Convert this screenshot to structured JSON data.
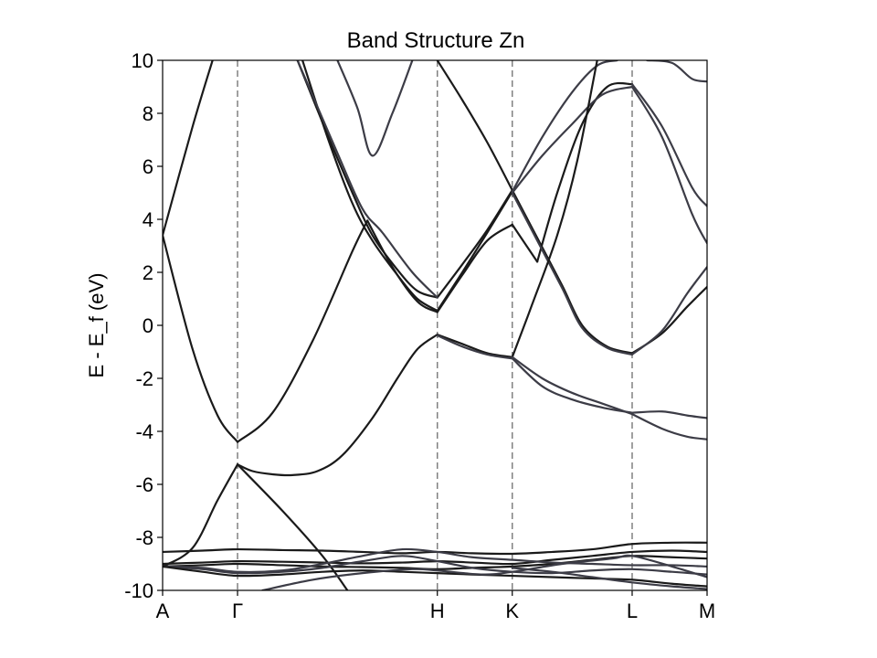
{
  "chart_data": {
    "type": "line",
    "title": "Band Structure Zn",
    "ylabel": "E - E_f (eV)",
    "xlabel": "",
    "ylim": [
      -10,
      10
    ],
    "xlim": [
      0,
      5.45
    ],
    "yticks": [
      10,
      8,
      6,
      4,
      2,
      0,
      -2,
      -4,
      -6,
      -8,
      -10
    ],
    "ytick_labels": [
      "10",
      "8",
      "6",
      "4",
      "2",
      "0",
      "-2",
      "-4",
      "-6",
      "-8",
      "-10"
    ],
    "grid": false,
    "kpoints": [
      {
        "label": "A",
        "x": 0.0
      },
      {
        "label": "Γ",
        "x": 0.75
      },
      {
        "label": "H",
        "x": 2.75
      },
      {
        "label": "K",
        "x": 3.5
      },
      {
        "label": "L",
        "x": 4.7
      },
      {
        "label": "M",
        "x": 5.45
      }
    ],
    "dashed_lines_at": [
      0.75,
      2.75,
      3.5,
      4.7
    ],
    "colors": {
      "band": "#1a1a1a",
      "band_alt": "#3c3c46",
      "dashed": "#808080",
      "frame": "#000000"
    },
    "series": [
      {
        "color": "#1a1a1a",
        "x": [
          0,
          0.3,
          0.55,
          0.75
        ],
        "y": [
          3.4,
          -0.9,
          -3.4,
          -4.4
        ]
      },
      {
        "color": "#1a1a1a",
        "x": [
          0.75,
          1.1,
          1.5,
          1.9,
          2.05
        ],
        "y": [
          -4.4,
          -3.3,
          -0.6,
          2.8,
          3.95
        ]
      },
      {
        "color": "#1a1a1a",
        "x": [
          2.05,
          2.3,
          2.55,
          2.75
        ],
        "y": [
          3.95,
          2.2,
          0.9,
          0.5
        ]
      },
      {
        "color": "#1a1a1a",
        "x": [
          2.75,
          3.0,
          3.25,
          3.5
        ],
        "y": [
          0.5,
          1.9,
          3.2,
          3.8
        ]
      },
      {
        "color": "#1a1a1a",
        "x": [
          3.5,
          3.75
        ],
        "y": [
          3.8,
          2.4
        ]
      },
      {
        "color": "#1a1a1a",
        "x": [
          3.75,
          3.95,
          4.2,
          4.45,
          4.7
        ],
        "y": [
          2.4,
          5.0,
          7.6,
          9.0,
          9.1
        ]
      },
      {
        "color": "#3c3c46",
        "x": [
          4.7,
          5.0,
          5.3,
          5.45
        ],
        "y": [
          9.1,
          7.5,
          5.2,
          4.5
        ]
      },
      {
        "color": "#1a1a1a",
        "x": [
          0,
          0.3,
          0.5
        ],
        "y": [
          3.4,
          7.5,
          10.0
        ]
      },
      {
        "color": "#1a1a1a",
        "x": [
          1.35,
          1.65,
          1.9,
          2.1,
          2.35,
          2.55,
          2.75
        ],
        "y": [
          10.0,
          7.2,
          5.0,
          3.4,
          2.1,
          1.3,
          1.05
        ]
      },
      {
        "color": "#1a1a1a",
        "x": [
          2.75,
          3.0,
          3.25,
          3.5
        ],
        "y": [
          1.05,
          2.3,
          3.6,
          5.1
        ]
      },
      {
        "color": "#1a1a1a",
        "x": [
          1.4,
          1.65,
          1.9,
          2.1,
          2.35,
          2.55,
          2.75
        ],
        "y": [
          10.0,
          7.1,
          4.6,
          3.2,
          1.9,
          1.0,
          0.55
        ]
      },
      {
        "color": "#1a1a1a",
        "x": [
          2.75,
          3.0,
          3.25,
          3.5
        ],
        "y": [
          0.55,
          2.0,
          3.5,
          5.05
        ]
      },
      {
        "color": "#1a1a1a",
        "x": [
          2.75,
          3.0,
          3.25,
          3.5
        ],
        "y": [
          10.0,
          8.5,
          6.9,
          5.1
        ]
      },
      {
        "color": "#1a1a1a",
        "x": [
          3.5,
          3.75,
          4.0,
          4.2,
          4.45,
          4.7
        ],
        "y": [
          5.1,
          3.3,
          1.5,
          0.0,
          -0.8,
          -1.05
        ]
      },
      {
        "color": "#1a1a1a",
        "x": [
          4.7,
          5.0,
          5.25,
          5.45
        ],
        "y": [
          -1.05,
          -0.3,
          0.7,
          1.45
        ]
      },
      {
        "color": "#3c3c46",
        "x": [
          3.5,
          3.75,
          4.0,
          4.2,
          4.45,
          4.7
        ],
        "y": [
          5.0,
          3.2,
          1.4,
          -0.1,
          -0.85,
          -1.1
        ]
      },
      {
        "color": "#3c3c46",
        "x": [
          4.7,
          5.0,
          5.25,
          5.45
        ],
        "y": [
          -1.1,
          -0.2,
          1.2,
          2.2
        ]
      },
      {
        "color": "#3c3c46",
        "x": [
          3.5,
          3.8,
          4.1,
          4.4,
          4.7
        ],
        "y": [
          5.0,
          6.4,
          7.6,
          8.7,
          9.0
        ]
      },
      {
        "color": "#3c3c46",
        "x": [
          4.7,
          5.0,
          5.3,
          5.45
        ],
        "y": [
          9.0,
          7.1,
          4.2,
          3.1
        ]
      },
      {
        "color": "#3c3c46",
        "x": [
          3.5,
          3.8,
          4.1,
          4.35,
          4.55
        ],
        "y": [
          5.05,
          7.1,
          8.8,
          9.8,
          10.0
        ]
      },
      {
        "color": "#1a1a1a",
        "x": [
          3.5,
          3.7,
          3.95,
          4.15,
          4.35
        ],
        "y": [
          -1.2,
          0.8,
          3.4,
          6.2,
          10.0
        ]
      },
      {
        "color": "#3c3c46",
        "x": [
          1.75,
          1.95,
          2.1,
          2.3,
          2.5
        ],
        "y": [
          10.0,
          8.2,
          6.4,
          8.0,
          10.0
        ]
      },
      {
        "color": "#3c3c46",
        "x": [
          1.35,
          1.75,
          2.0,
          2.2,
          2.5,
          2.75
        ],
        "y": [
          10.0,
          6.5,
          4.4,
          3.5,
          2.0,
          1.05
        ]
      },
      {
        "color": "#1a1a1a",
        "x": [
          0.75,
          0.9,
          1.1,
          1.3,
          1.55,
          1.8,
          2.1,
          2.35,
          2.55,
          2.75
        ],
        "y": [
          -5.25,
          -5.5,
          -5.62,
          -5.65,
          -5.5,
          -4.9,
          -3.5,
          -2.0,
          -0.9,
          -0.35
        ]
      },
      {
        "color": "#1a1a1a",
        "x": [
          2.75,
          3.0,
          3.25,
          3.5
        ],
        "y": [
          -0.35,
          -0.7,
          -1.05,
          -1.2
        ]
      },
      {
        "color": "#3c3c46",
        "x": [
          2.75,
          3.0,
          3.25,
          3.5
        ],
        "y": [
          -0.38,
          -0.8,
          -1.1,
          -1.25
        ]
      },
      {
        "color": "#3c3c46",
        "x": [
          3.5,
          3.8,
          4.1,
          4.4,
          4.7
        ],
        "y": [
          -1.2,
          -2.0,
          -2.55,
          -2.95,
          -3.35
        ]
      },
      {
        "color": "#3c3c46",
        "x": [
          4.7,
          5.0,
          5.25,
          5.45
        ],
        "y": [
          -3.35,
          -3.9,
          -4.2,
          -4.3
        ]
      },
      {
        "color": "#3c3c46",
        "x": [
          3.5,
          3.8,
          4.1,
          4.4,
          4.7
        ],
        "y": [
          -1.25,
          -2.3,
          -2.8,
          -3.1,
          -3.3
        ]
      },
      {
        "color": "#3c3c46",
        "x": [
          4.7,
          5.0,
          5.25,
          5.45
        ],
        "y": [
          -3.3,
          -3.25,
          -3.4,
          -3.5
        ]
      },
      {
        "color": "#1a1a1a",
        "x": [
          0,
          0.3,
          0.55,
          0.75
        ],
        "y": [
          -9.1,
          -8.4,
          -6.6,
          -5.25
        ]
      },
      {
        "color": "#1a1a1a",
        "x": [
          0.75,
          1.2,
          1.6,
          1.85
        ],
        "y": [
          -5.25,
          -7.0,
          -8.7,
          -10.0
        ]
      },
      {
        "color": "#3c3c46",
        "x": [
          4.85,
          5.1,
          5.3,
          5.45
        ],
        "y": [
          10.0,
          9.9,
          9.3,
          9.2
        ]
      },
      {
        "color": "#1a1a1a",
        "x": [
          0,
          0.4,
          0.75,
          1.2,
          1.6,
          2.0,
          2.4,
          2.75,
          3.1,
          3.5,
          3.9,
          4.3,
          4.7,
          5.1,
          5.45
        ],
        "y": [
          -8.55,
          -8.5,
          -8.45,
          -8.48,
          -8.5,
          -8.55,
          -8.6,
          -8.55,
          -8.6,
          -8.62,
          -8.55,
          -8.45,
          -8.25,
          -8.2,
          -8.2
        ]
      },
      {
        "color": "#1a1a1a",
        "x": [
          0,
          0.4,
          0.75,
          1.2,
          1.6,
          2.0,
          2.4,
          2.75,
          3.1,
          3.5,
          3.9,
          4.3,
          4.7,
          5.1,
          5.45
        ],
        "y": [
          -9.0,
          -8.95,
          -8.9,
          -8.92,
          -8.95,
          -8.98,
          -8.95,
          -8.9,
          -8.95,
          -9.0,
          -8.85,
          -8.7,
          -8.55,
          -8.5,
          -8.55
        ]
      },
      {
        "color": "#1a1a1a",
        "x": [
          0,
          0.4,
          0.75,
          1.2,
          1.6,
          2.0,
          2.4,
          2.75,
          3.1,
          3.5,
          3.9,
          4.3,
          4.7,
          5.1,
          5.45
        ],
        "y": [
          -9.1,
          -9.05,
          -9.0,
          -9.05,
          -9.1,
          -9.12,
          -9.15,
          -9.2,
          -9.15,
          -9.1,
          -9.0,
          -8.85,
          -8.7,
          -8.75,
          -8.8
        ]
      },
      {
        "color": "#3c3c46",
        "x": [
          0,
          0.4,
          0.75,
          1.2,
          1.6,
          2.0,
          2.4,
          2.75,
          3.1,
          3.5,
          3.9,
          4.3,
          4.7,
          5.1,
          5.45
        ],
        "y": [
          -9.1,
          -9.15,
          -9.3,
          -9.25,
          -9.0,
          -8.7,
          -8.45,
          -8.55,
          -8.75,
          -8.85,
          -8.95,
          -9.0,
          -9.05,
          -9.05,
          -9.1
        ]
      },
      {
        "color": "#3c3c46",
        "x": [
          0,
          0.4,
          0.75,
          1.2,
          1.6,
          2.0,
          2.4,
          2.75,
          3.1,
          3.5,
          3.9,
          4.3,
          4.7,
          5.1,
          5.45
        ],
        "y": [
          -9.1,
          -9.2,
          -9.35,
          -9.3,
          -9.15,
          -8.9,
          -8.7,
          -8.9,
          -9.15,
          -9.3,
          -9.35,
          -9.25,
          -9.2,
          -9.3,
          -9.4
        ]
      },
      {
        "color": "#1a1a1a",
        "x": [
          0,
          0.4,
          0.75,
          1.2,
          1.6,
          2.0,
          2.4,
          2.75,
          3.1,
          3.5,
          3.9,
          4.3,
          4.7,
          5.1,
          5.45
        ],
        "y": [
          -9.1,
          -9.3,
          -9.45,
          -9.4,
          -9.3,
          -9.25,
          -9.3,
          -9.35,
          -9.4,
          -9.45,
          -9.5,
          -9.55,
          -9.6,
          -9.75,
          -9.85
        ]
      },
      {
        "color": "#3c3c46",
        "x": [
          1.0,
          1.5,
          2.0,
          2.5,
          2.75,
          3.2,
          3.5,
          4.0,
          4.5,
          4.7,
          5.1,
          5.45
        ],
        "y": [
          -10.0,
          -9.6,
          -9.35,
          -9.2,
          -9.25,
          -9.4,
          -9.3,
          -9.0,
          -8.8,
          -8.7,
          -9.1,
          -9.5
        ]
      },
      {
        "color": "#3c3c46",
        "x": [
          3.5,
          3.9,
          4.3,
          4.7,
          5.1,
          5.45
        ],
        "y": [
          -9.15,
          -9.3,
          -9.5,
          -9.7,
          -9.85,
          -9.95
        ]
      }
    ]
  }
}
